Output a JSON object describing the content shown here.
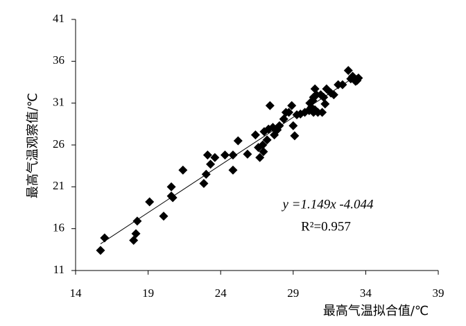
{
  "chart_data": {
    "type": "scatter",
    "x_label": "最高气温拟合值/℃",
    "y_label": "最高气温观察值/℃",
    "annotations": [
      "y =1.149x -4.044",
      "R²=0.957"
    ],
    "x": [
      15.72,
      16.0,
      18.25,
      18.0,
      18.16,
      19.1,
      20.07,
      20.6,
      20.7,
      20.6,
      21.4,
      22.84,
      23.0,
      23.1,
      23.3,
      23.6,
      24.3,
      24.85,
      24.85,
      25.2,
      25.85,
      26.4,
      26.6,
      26.7,
      26.95,
      26.9,
      27.0,
      27.2,
      27.4,
      27.3,
      27.6,
      27.7,
      27.9,
      28.05,
      28.35,
      28.5,
      28.7,
      28.9,
      29.0,
      29.1,
      29.25,
      29.5,
      29.8,
      30.1,
      30.15,
      30.25,
      30.35,
      30.4,
      30.4,
      30.5,
      30.6,
      30.7,
      30.9,
      30.5,
      31.1,
      31.0,
      31.2,
      31.3,
      31.6,
      31.8,
      32.1,
      32.4,
      32.8,
      32.97,
      33.1,
      33.3,
      33.5,
      33.4
    ],
    "values": [
      13.4,
      14.9,
      16.9,
      14.6,
      15.4,
      19.2,
      17.5,
      19.9,
      19.7,
      21.0,
      23.0,
      21.4,
      22.5,
      24.8,
      23.7,
      24.5,
      24.8,
      23.0,
      24.8,
      26.5,
      24.9,
      27.2,
      25.7,
      24.5,
      25.2,
      26.0,
      27.6,
      26.6,
      30.7,
      27.9,
      28.1,
      27.2,
      27.8,
      28.3,
      29.1,
      29.9,
      29.9,
      30.7,
      28.3,
      27.1,
      29.6,
      29.7,
      29.9,
      30.1,
      31.0,
      30.5,
      31.3,
      29.9,
      31.7,
      30.2,
      32.0,
      29.9,
      32.0,
      32.7,
      31.7,
      29.9,
      30.9,
      32.7,
      32.2,
      32.0,
      33.2,
      33.2,
      34.9,
      33.9,
      34.2,
      33.6,
      34.0,
      33.7
    ],
    "color": "#000000",
    "marker": "diamond",
    "trendline": true,
    "xlim": [
      14,
      39
    ],
    "xticks": [
      14,
      19,
      24,
      29,
      34,
      39
    ],
    "ylim": [
      11,
      41
    ],
    "yticks": [
      11,
      16,
      21,
      26,
      31,
      36,
      41
    ],
    "grid": false
  }
}
